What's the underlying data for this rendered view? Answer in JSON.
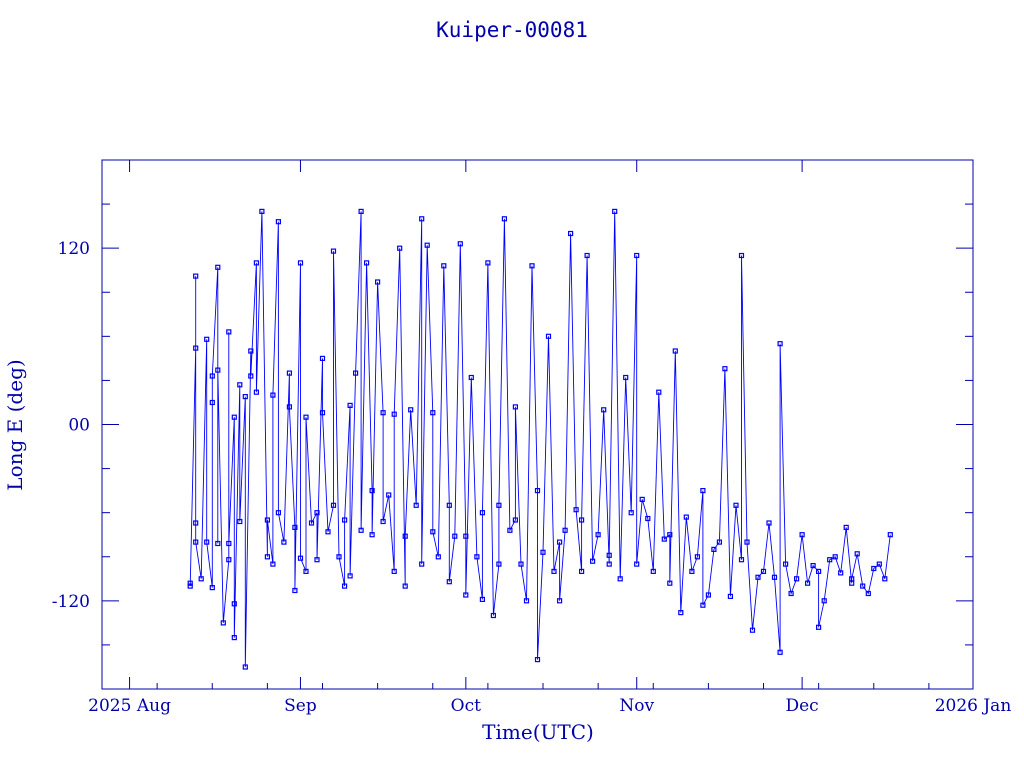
{
  "colors": {
    "axis": "#0000aa",
    "series": "#0000ff",
    "background": "#ffffff"
  },
  "chart_data": {
    "type": "line",
    "title": "Kuiper-00081",
    "xlabel": "Time(UTC)",
    "ylabel": "Long E (deg)",
    "xlim": [
      "2025-07-27",
      "2026-01-01"
    ],
    "ylim": [
      -180,
      180
    ],
    "x_ticks": [
      {
        "date": "2025-08-01",
        "label": "2025 Aug"
      },
      {
        "date": "2025-09-01",
        "label": "Sep"
      },
      {
        "date": "2025-10-01",
        "label": "Oct"
      },
      {
        "date": "2025-11-01",
        "label": "Nov"
      },
      {
        "date": "2025-12-01",
        "label": "Dec"
      },
      {
        "date": "2026-01-01",
        "label": "2026 Jan"
      }
    ],
    "y_ticks": [
      {
        "value": 120,
        "label": "120"
      },
      {
        "value": 0,
        "label": "00"
      },
      {
        "value": -120,
        "label": "-120"
      }
    ],
    "grid": false,
    "marker": "square",
    "series": [
      {
        "x": [
          "2025-08-12",
          "2025-08-12",
          "2025-08-13",
          "2025-08-13",
          "2025-08-13",
          "2025-08-13",
          "2025-08-14",
          "2025-08-15",
          "2025-08-15",
          "2025-08-16",
          "2025-08-16",
          "2025-08-16",
          "2025-08-17",
          "2025-08-17",
          "2025-08-17",
          "2025-08-18",
          "2025-08-19",
          "2025-08-19",
          "2025-08-19",
          "2025-08-20",
          "2025-08-20",
          "2025-08-20",
          "2025-08-21",
          "2025-08-21",
          "2025-08-22",
          "2025-08-22",
          "2025-08-23",
          "2025-08-23",
          "2025-08-24",
          "2025-08-24",
          "2025-08-25",
          "2025-08-26",
          "2025-08-26",
          "2025-08-27",
          "2025-08-27",
          "2025-08-28",
          "2025-08-28",
          "2025-08-29",
          "2025-08-30",
          "2025-08-30",
          "2025-08-31",
          "2025-08-31",
          "2025-09-01",
          "2025-09-01",
          "2025-09-02",
          "2025-09-02",
          "2025-09-03",
          "2025-09-04",
          "2025-09-04",
          "2025-09-05",
          "2025-09-05",
          "2025-09-06",
          "2025-09-07",
          "2025-09-07",
          "2025-09-08",
          "2025-09-09",
          "2025-09-09",
          "2025-09-10",
          "2025-09-10",
          "2025-09-11",
          "2025-09-12",
          "2025-09-12",
          "2025-09-13",
          "2025-09-14",
          "2025-09-14",
          "2025-09-15",
          "2025-09-16",
          "2025-09-16",
          "2025-09-17",
          "2025-09-18",
          "2025-09-18",
          "2025-09-19",
          "2025-09-20",
          "2025-09-20",
          "2025-09-21",
          "2025-09-22",
          "2025-09-23",
          "2025-09-23",
          "2025-09-24",
          "2025-09-25",
          "2025-09-25",
          "2025-09-26",
          "2025-09-27",
          "2025-09-28",
          "2025-09-28",
          "2025-09-29",
          "2025-09-30",
          "2025-10-01",
          "2025-10-01",
          "2025-10-02",
          "2025-10-03",
          "2025-10-04",
          "2025-10-04",
          "2025-10-05",
          "2025-10-06",
          "2025-10-07",
          "2025-10-07",
          "2025-10-08",
          "2025-10-09",
          "2025-10-10",
          "2025-10-10",
          "2025-10-11",
          "2025-10-12",
          "2025-10-13",
          "2025-10-14",
          "2025-10-14",
          "2025-10-15",
          "2025-10-16",
          "2025-10-17",
          "2025-10-18",
          "2025-10-18",
          "2025-10-19",
          "2025-10-20",
          "2025-10-21",
          "2025-10-22",
          "2025-10-22",
          "2025-10-23",
          "2025-10-24",
          "2025-10-25",
          "2025-10-26",
          "2025-10-27",
          "2025-10-27",
          "2025-10-28",
          "2025-10-29",
          "2025-10-30",
          "2025-10-31",
          "2025-11-01",
          "2025-11-01",
          "2025-11-02",
          "2025-11-03",
          "2025-11-04",
          "2025-11-05",
          "2025-11-06",
          "2025-11-07",
          "2025-11-07",
          "2025-11-08",
          "2025-11-09",
          "2025-11-10",
          "2025-11-11",
          "2025-11-12",
          "2025-11-13",
          "2025-11-13",
          "2025-11-14",
          "2025-11-15",
          "2025-11-16",
          "2025-11-17",
          "2025-11-18",
          "2025-11-19",
          "2025-11-20",
          "2025-11-20",
          "2025-11-21",
          "2025-11-22",
          "2025-11-23",
          "2025-11-24",
          "2025-11-25",
          "2025-11-26",
          "2025-11-27",
          "2025-11-27",
          "2025-11-28",
          "2025-11-29",
          "2025-11-30",
          "2025-12-01",
          "2025-12-02",
          "2025-12-03",
          "2025-12-04",
          "2025-12-04",
          "2025-12-05",
          "2025-12-06",
          "2025-12-07",
          "2025-12-08",
          "2025-12-09",
          "2025-12-10",
          "2025-12-10",
          "2025-12-11",
          "2025-12-12",
          "2025-12-13",
          "2025-12-14",
          "2025-12-15",
          "2025-12-16",
          "2025-12-17"
        ],
        "y": [
          -108,
          -110,
          52,
          101,
          -67,
          -80,
          -105,
          58,
          -80,
          -111,
          15,
          33,
          107,
          -81,
          37,
          -135,
          -92,
          63,
          -81,
          5,
          -122,
          -145,
          27,
          -66,
          19,
          -165,
          50,
          33,
          110,
          22,
          145,
          -90,
          -65,
          -95,
          20,
          138,
          -60,
          -80,
          35,
          12,
          -70,
          -113,
          110,
          -91,
          -100,
          5,
          -67,
          -60,
          -92,
          45,
          8,
          -73,
          -55,
          118,
          -90,
          -110,
          -65,
          13,
          -103,
          35,
          145,
          -72,
          110,
          -45,
          -75,
          97,
          8,
          -66,
          -48,
          -100,
          7,
          120,
          -110,
          -76,
          10,
          -55,
          140,
          -95,
          122,
          8,
          -73,
          -90,
          108,
          -55,
          -107,
          -76,
          123,
          -76,
          -116,
          32,
          -90,
          -119,
          -60,
          110,
          -130,
          -95,
          -55,
          140,
          -72,
          -65,
          12,
          -95,
          -120,
          108,
          -45,
          -160,
          -87,
          60,
          -100,
          -80,
          -120,
          -72,
          130,
          -58,
          -100,
          -65,
          115,
          -93,
          -75,
          10,
          -95,
          -89,
          145,
          -105,
          32,
          -60,
          115,
          -95,
          -51,
          -64,
          -100,
          22,
          -78,
          -75,
          -108,
          50,
          -128,
          -63,
          -100,
          -90,
          -45,
          -123,
          -116,
          -85,
          -80,
          38,
          -117,
          -55,
          -92,
          115,
          -80,
          -140,
          -104,
          -100,
          -67,
          -104,
          -155,
          55,
          -95,
          -115,
          -105,
          -75,
          -108,
          -96,
          -100,
          -138,
          -120,
          -92,
          -90,
          -101,
          -70,
          -108,
          -105,
          -88,
          -110,
          -115,
          -98,
          -95,
          -105,
          -75
        ]
      }
    ]
  }
}
